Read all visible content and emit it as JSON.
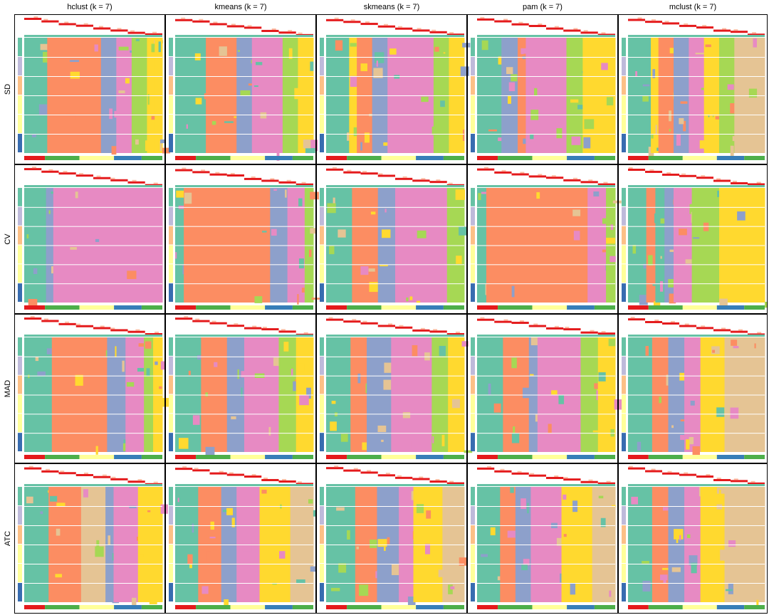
{
  "columns": [
    "hclust (k = 7)",
    "kmeans (k = 7)",
    "skmeans (k = 7)",
    "pam (k = 7)",
    "mclust (k = 7)"
  ],
  "rows": [
    "SD",
    "CV",
    "MAD",
    "ATC"
  ]
}
